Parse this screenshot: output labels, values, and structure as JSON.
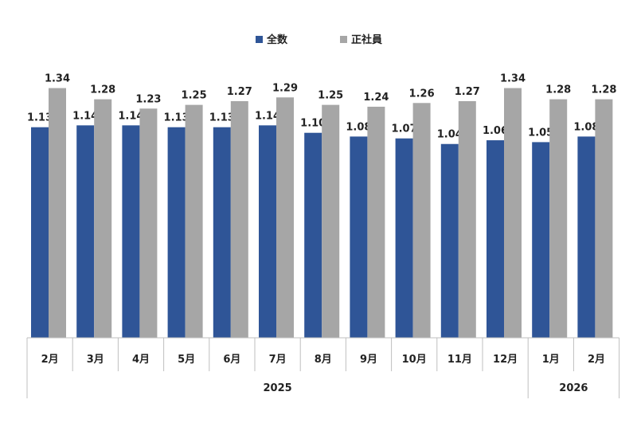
{
  "chart_data": {
    "type": "bar",
    "categories": [
      "2月",
      "3月",
      "4月",
      "5月",
      "6月",
      "7月",
      "8月",
      "9月",
      "10月",
      "11月",
      "12月",
      "1月",
      "2月"
    ],
    "year_groups": [
      {
        "label": "2025",
        "count": 11
      },
      {
        "label": "2026",
        "count": 2
      }
    ],
    "series": [
      {
        "name": "全数",
        "color": "#2f5597",
        "values": [
          1.13,
          1.14,
          1.14,
          1.13,
          1.13,
          1.14,
          1.1,
          1.08,
          1.07,
          1.04,
          1.06,
          1.05,
          1.08
        ],
        "labels": [
          "1.13",
          "1.14",
          "1.14",
          "1.13",
          "1.13",
          "1.14",
          "1.10",
          "1.08",
          "1.07",
          "1.04",
          "1.06",
          "1.05",
          "1.08"
        ]
      },
      {
        "name": "正社員",
        "color": "#a6a6a6",
        "values": [
          1.34,
          1.28,
          1.23,
          1.25,
          1.27,
          1.29,
          1.25,
          1.24,
          1.26,
          1.27,
          1.34,
          1.28,
          1.28
        ],
        "labels": [
          "1.34",
          "1.28",
          "1.23",
          "1.25",
          "1.27",
          "1.29",
          "1.25",
          "1.24",
          "1.26",
          "1.27",
          "1.34",
          "1.28",
          "1.28"
        ]
      }
    ],
    "legend_position": "top-center",
    "grid": false,
    "y_axis_visible": false
  }
}
